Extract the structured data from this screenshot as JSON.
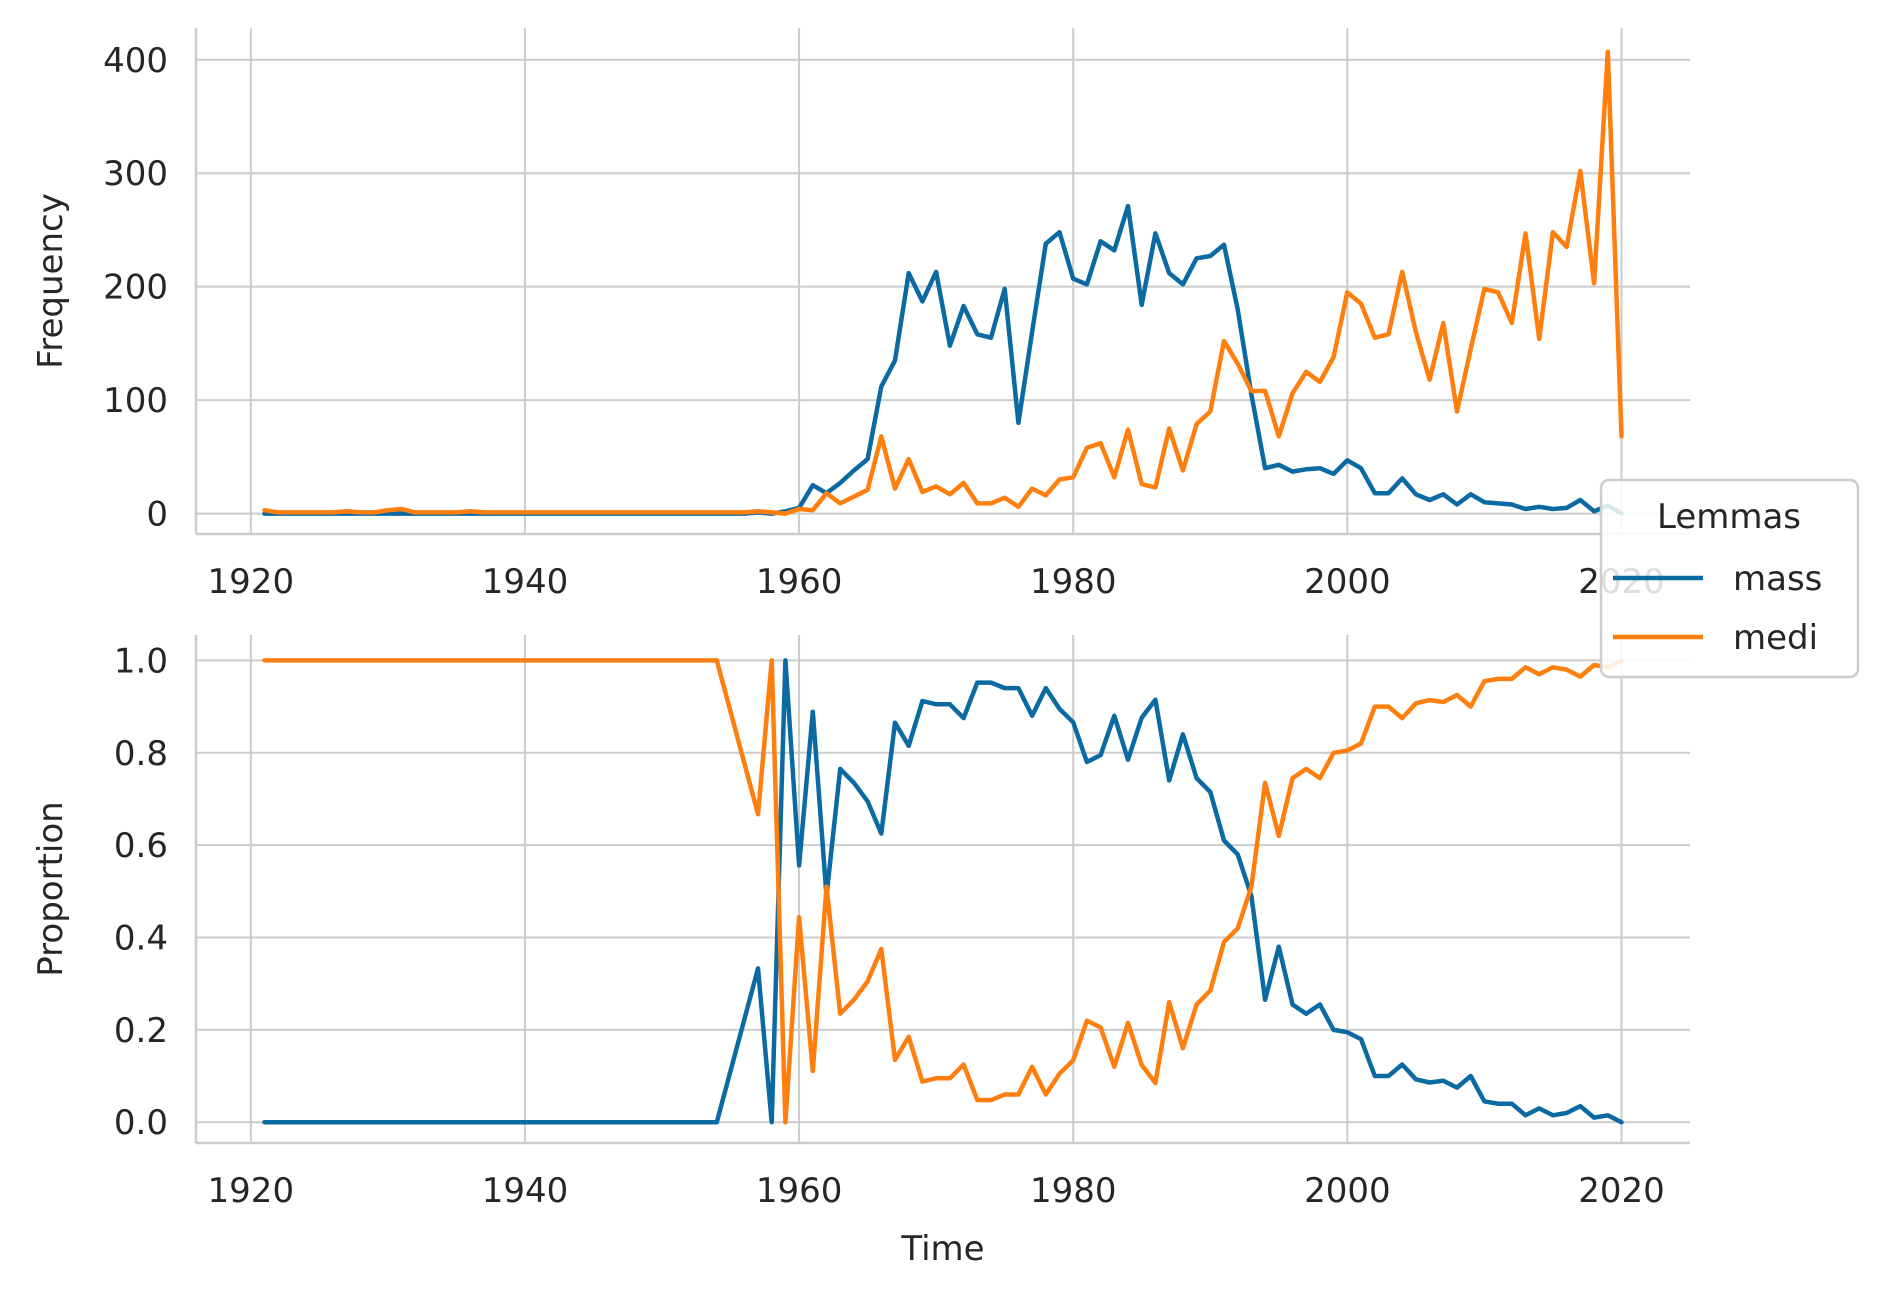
{
  "chart_data": [
    {
      "type": "line",
      "panel": "top",
      "ylabel": "Frequency",
      "xlabel": "",
      "xlim": [
        1916,
        2025
      ],
      "ylim": [
        -18,
        428
      ],
      "xticks": [
        1920,
        1940,
        1960,
        1980,
        2000,
        2020
      ],
      "yticks": [
        0,
        100,
        200,
        300,
        400
      ],
      "series": [
        {
          "name": "mass",
          "color": "#0a6aa1",
          "x": [
            1921,
            1922,
            1923,
            1924,
            1925,
            1926,
            1927,
            1928,
            1929,
            1930,
            1931,
            1932,
            1933,
            1934,
            1935,
            1936,
            1937,
            1938,
            1939,
            1940,
            1941,
            1942,
            1943,
            1944,
            1945,
            1946,
            1947,
            1948,
            1949,
            1950,
            1951,
            1952,
            1953,
            1954,
            1955,
            1956,
            1957,
            1958,
            1959,
            1960,
            1961,
            1962,
            1963,
            1964,
            1965,
            1966,
            1967,
            1968,
            1969,
            1970,
            1971,
            1972,
            1973,
            1974,
            1975,
            1976,
            1977,
            1978,
            1979,
            1980,
            1981,
            1982,
            1983,
            1984,
            1985,
            1986,
            1987,
            1988,
            1989,
            1990,
            1991,
            1992,
            1993,
            1994,
            1995,
            1996,
            1997,
            1998,
            1999,
            2000,
            2001,
            2002,
            2003,
            2004,
            2005,
            2006,
            2007,
            2008,
            2009,
            2010,
            2011,
            2012,
            2013,
            2014,
            2015,
            2016,
            2017,
            2018,
            2019,
            2020
          ],
          "values": [
            0,
            0,
            0,
            0,
            0,
            0,
            0,
            0,
            0,
            0,
            0,
            0,
            0,
            0,
            0,
            0,
            0,
            0,
            0,
            0,
            0,
            0,
            0,
            0,
            0,
            0,
            0,
            0,
            0,
            0,
            0,
            0,
            0,
            0,
            0,
            0,
            1,
            0,
            2,
            5,
            25,
            18,
            27,
            38,
            48,
            112,
            135,
            212,
            187,
            213,
            148,
            183,
            158,
            155,
            198,
            80,
            160,
            238,
            248,
            207,
            202,
            240,
            232,
            271,
            184,
            247,
            212,
            202,
            225,
            227,
            237,
            180,
            105,
            40,
            43,
            37,
            39,
            40,
            35,
            47,
            40,
            18,
            18,
            31,
            17,
            12,
            17,
            8,
            17,
            10,
            9,
            8,
            4,
            6,
            4,
            5,
            12,
            2,
            7,
            0
          ]
        },
        {
          "name": "medi",
          "color": "#ff7f0e",
          "x": [
            1921,
            1922,
            1923,
            1924,
            1925,
            1926,
            1927,
            1928,
            1929,
            1930,
            1931,
            1932,
            1933,
            1934,
            1935,
            1936,
            1937,
            1938,
            1939,
            1940,
            1941,
            1942,
            1943,
            1944,
            1945,
            1946,
            1947,
            1948,
            1949,
            1950,
            1951,
            1952,
            1953,
            1954,
            1955,
            1956,
            1957,
            1958,
            1959,
            1960,
            1961,
            1962,
            1963,
            1964,
            1965,
            1966,
            1967,
            1968,
            1969,
            1970,
            1971,
            1972,
            1973,
            1974,
            1975,
            1976,
            1977,
            1978,
            1979,
            1980,
            1981,
            1982,
            1983,
            1984,
            1985,
            1986,
            1987,
            1988,
            1989,
            1990,
            1991,
            1992,
            1993,
            1994,
            1995,
            1996,
            1997,
            1998,
            1999,
            2000,
            2001,
            2002,
            2003,
            2004,
            2005,
            2006,
            2007,
            2008,
            2009,
            2010,
            2011,
            2012,
            2013,
            2014,
            2015,
            2016,
            2017,
            2018,
            2019,
            2020
          ],
          "values": [
            3,
            1,
            1,
            1,
            1,
            1,
            2,
            1,
            1,
            3,
            4,
            1,
            1,
            1,
            1,
            2,
            1,
            1,
            1,
            1,
            1,
            1,
            1,
            1,
            1,
            1,
            1,
            1,
            1,
            1,
            1,
            1,
            1,
            1,
            1,
            1,
            2,
            1,
            0,
            4,
            3,
            18,
            9,
            15,
            21,
            68,
            22,
            48,
            19,
            24,
            17,
            27,
            9,
            9,
            14,
            6,
            22,
            16,
            30,
            32,
            58,
            62,
            32,
            74,
            26,
            23,
            75,
            38,
            79,
            90,
            152,
            132,
            108,
            108,
            68,
            106,
            125,
            116,
            138,
            195,
            185,
            155,
            158,
            213,
            160,
            118,
            168,
            90,
            145,
            198,
            195,
            168,
            247,
            154,
            248,
            235,
            302,
            203,
            407,
            68
          ]
        }
      ]
    },
    {
      "type": "line",
      "panel": "bottom",
      "ylabel": "Proportion",
      "xlabel": "Time",
      "xlim": [
        1916,
        2025
      ],
      "ylim": [
        -0.045,
        1.055
      ],
      "xticks": [
        1920,
        1940,
        1960,
        1980,
        2000,
        2020
      ],
      "yticks": [
        0.0,
        0.2,
        0.4,
        0.6,
        0.8,
        1.0
      ],
      "series": [
        {
          "name": "mass",
          "color": "#0a6aa1",
          "x": [
            1921,
            1954,
            1957,
            1958,
            1959,
            1960,
            1961,
            1962,
            1963,
            1964,
            1965,
            1966,
            1967,
            1968,
            1969,
            1970,
            1971,
            1972,
            1973,
            1974,
            1975,
            1976,
            1977,
            1978,
            1979,
            1980,
            1981,
            1982,
            1983,
            1984,
            1985,
            1986,
            1987,
            1988,
            1989,
            1990,
            1991,
            1992,
            1993,
            1994,
            1995,
            1996,
            1997,
            1998,
            1999,
            2000,
            2001,
            2002,
            2003,
            2004,
            2005,
            2006,
            2007,
            2008,
            2009,
            2010,
            2011,
            2012,
            2013,
            2014,
            2015,
            2016,
            2017,
            2018,
            2019,
            2020
          ],
          "values": [
            0.0,
            0.0,
            0.333,
            0.0,
            1.0,
            0.556,
            0.889,
            0.49,
            0.765,
            0.735,
            0.695,
            0.625,
            0.865,
            0.815,
            0.912,
            0.905,
            0.905,
            0.875,
            0.952,
            0.952,
            0.94,
            0.94,
            0.88,
            0.94,
            0.895,
            0.866,
            0.78,
            0.795,
            0.88,
            0.785,
            0.876,
            0.915,
            0.74,
            0.84,
            0.745,
            0.715,
            0.61,
            0.58,
            0.49,
            0.265,
            0.38,
            0.255,
            0.235,
            0.255,
            0.2,
            0.195,
            0.18,
            0.1,
            0.1,
            0.125,
            0.093,
            0.086,
            0.09,
            0.075,
            0.1,
            0.045,
            0.04,
            0.04,
            0.015,
            0.03,
            0.015,
            0.02,
            0.035,
            0.01,
            0.015,
            0.0
          ]
        },
        {
          "name": "medi",
          "color": "#ff7f0e",
          "x": [
            1921,
            1954,
            1957,
            1958,
            1959,
            1960,
            1961,
            1962,
            1963,
            1964,
            1965,
            1966,
            1967,
            1968,
            1969,
            1970,
            1971,
            1972,
            1973,
            1974,
            1975,
            1976,
            1977,
            1978,
            1979,
            1980,
            1981,
            1982,
            1983,
            1984,
            1985,
            1986,
            1987,
            1988,
            1989,
            1990,
            1991,
            1992,
            1993,
            1994,
            1995,
            1996,
            1997,
            1998,
            1999,
            2000,
            2001,
            2002,
            2003,
            2004,
            2005,
            2006,
            2007,
            2008,
            2009,
            2010,
            2011,
            2012,
            2013,
            2014,
            2015,
            2016,
            2017,
            2018,
            2019,
            2020
          ],
          "values": [
            1.0,
            1.0,
            0.667,
            1.0,
            0.0,
            0.444,
            0.111,
            0.51,
            0.235,
            0.265,
            0.305,
            0.375,
            0.135,
            0.185,
            0.088,
            0.095,
            0.095,
            0.125,
            0.048,
            0.048,
            0.06,
            0.06,
            0.12,
            0.06,
            0.105,
            0.134,
            0.22,
            0.205,
            0.12,
            0.215,
            0.124,
            0.085,
            0.26,
            0.16,
            0.255,
            0.285,
            0.39,
            0.42,
            0.51,
            0.735,
            0.62,
            0.745,
            0.765,
            0.745,
            0.8,
            0.805,
            0.82,
            0.9,
            0.9,
            0.875,
            0.907,
            0.914,
            0.91,
            0.925,
            0.9,
            0.955,
            0.96,
            0.96,
            0.985,
            0.97,
            0.985,
            0.98,
            0.965,
            0.99,
            0.985,
            1.0
          ]
        }
      ]
    }
  ],
  "legend": {
    "title": "Lemmas",
    "placement": "right",
    "entries": [
      {
        "name": "mass",
        "color": "#0a6aa1"
      },
      {
        "name": "medi",
        "color": "#ff7f0e"
      }
    ]
  }
}
